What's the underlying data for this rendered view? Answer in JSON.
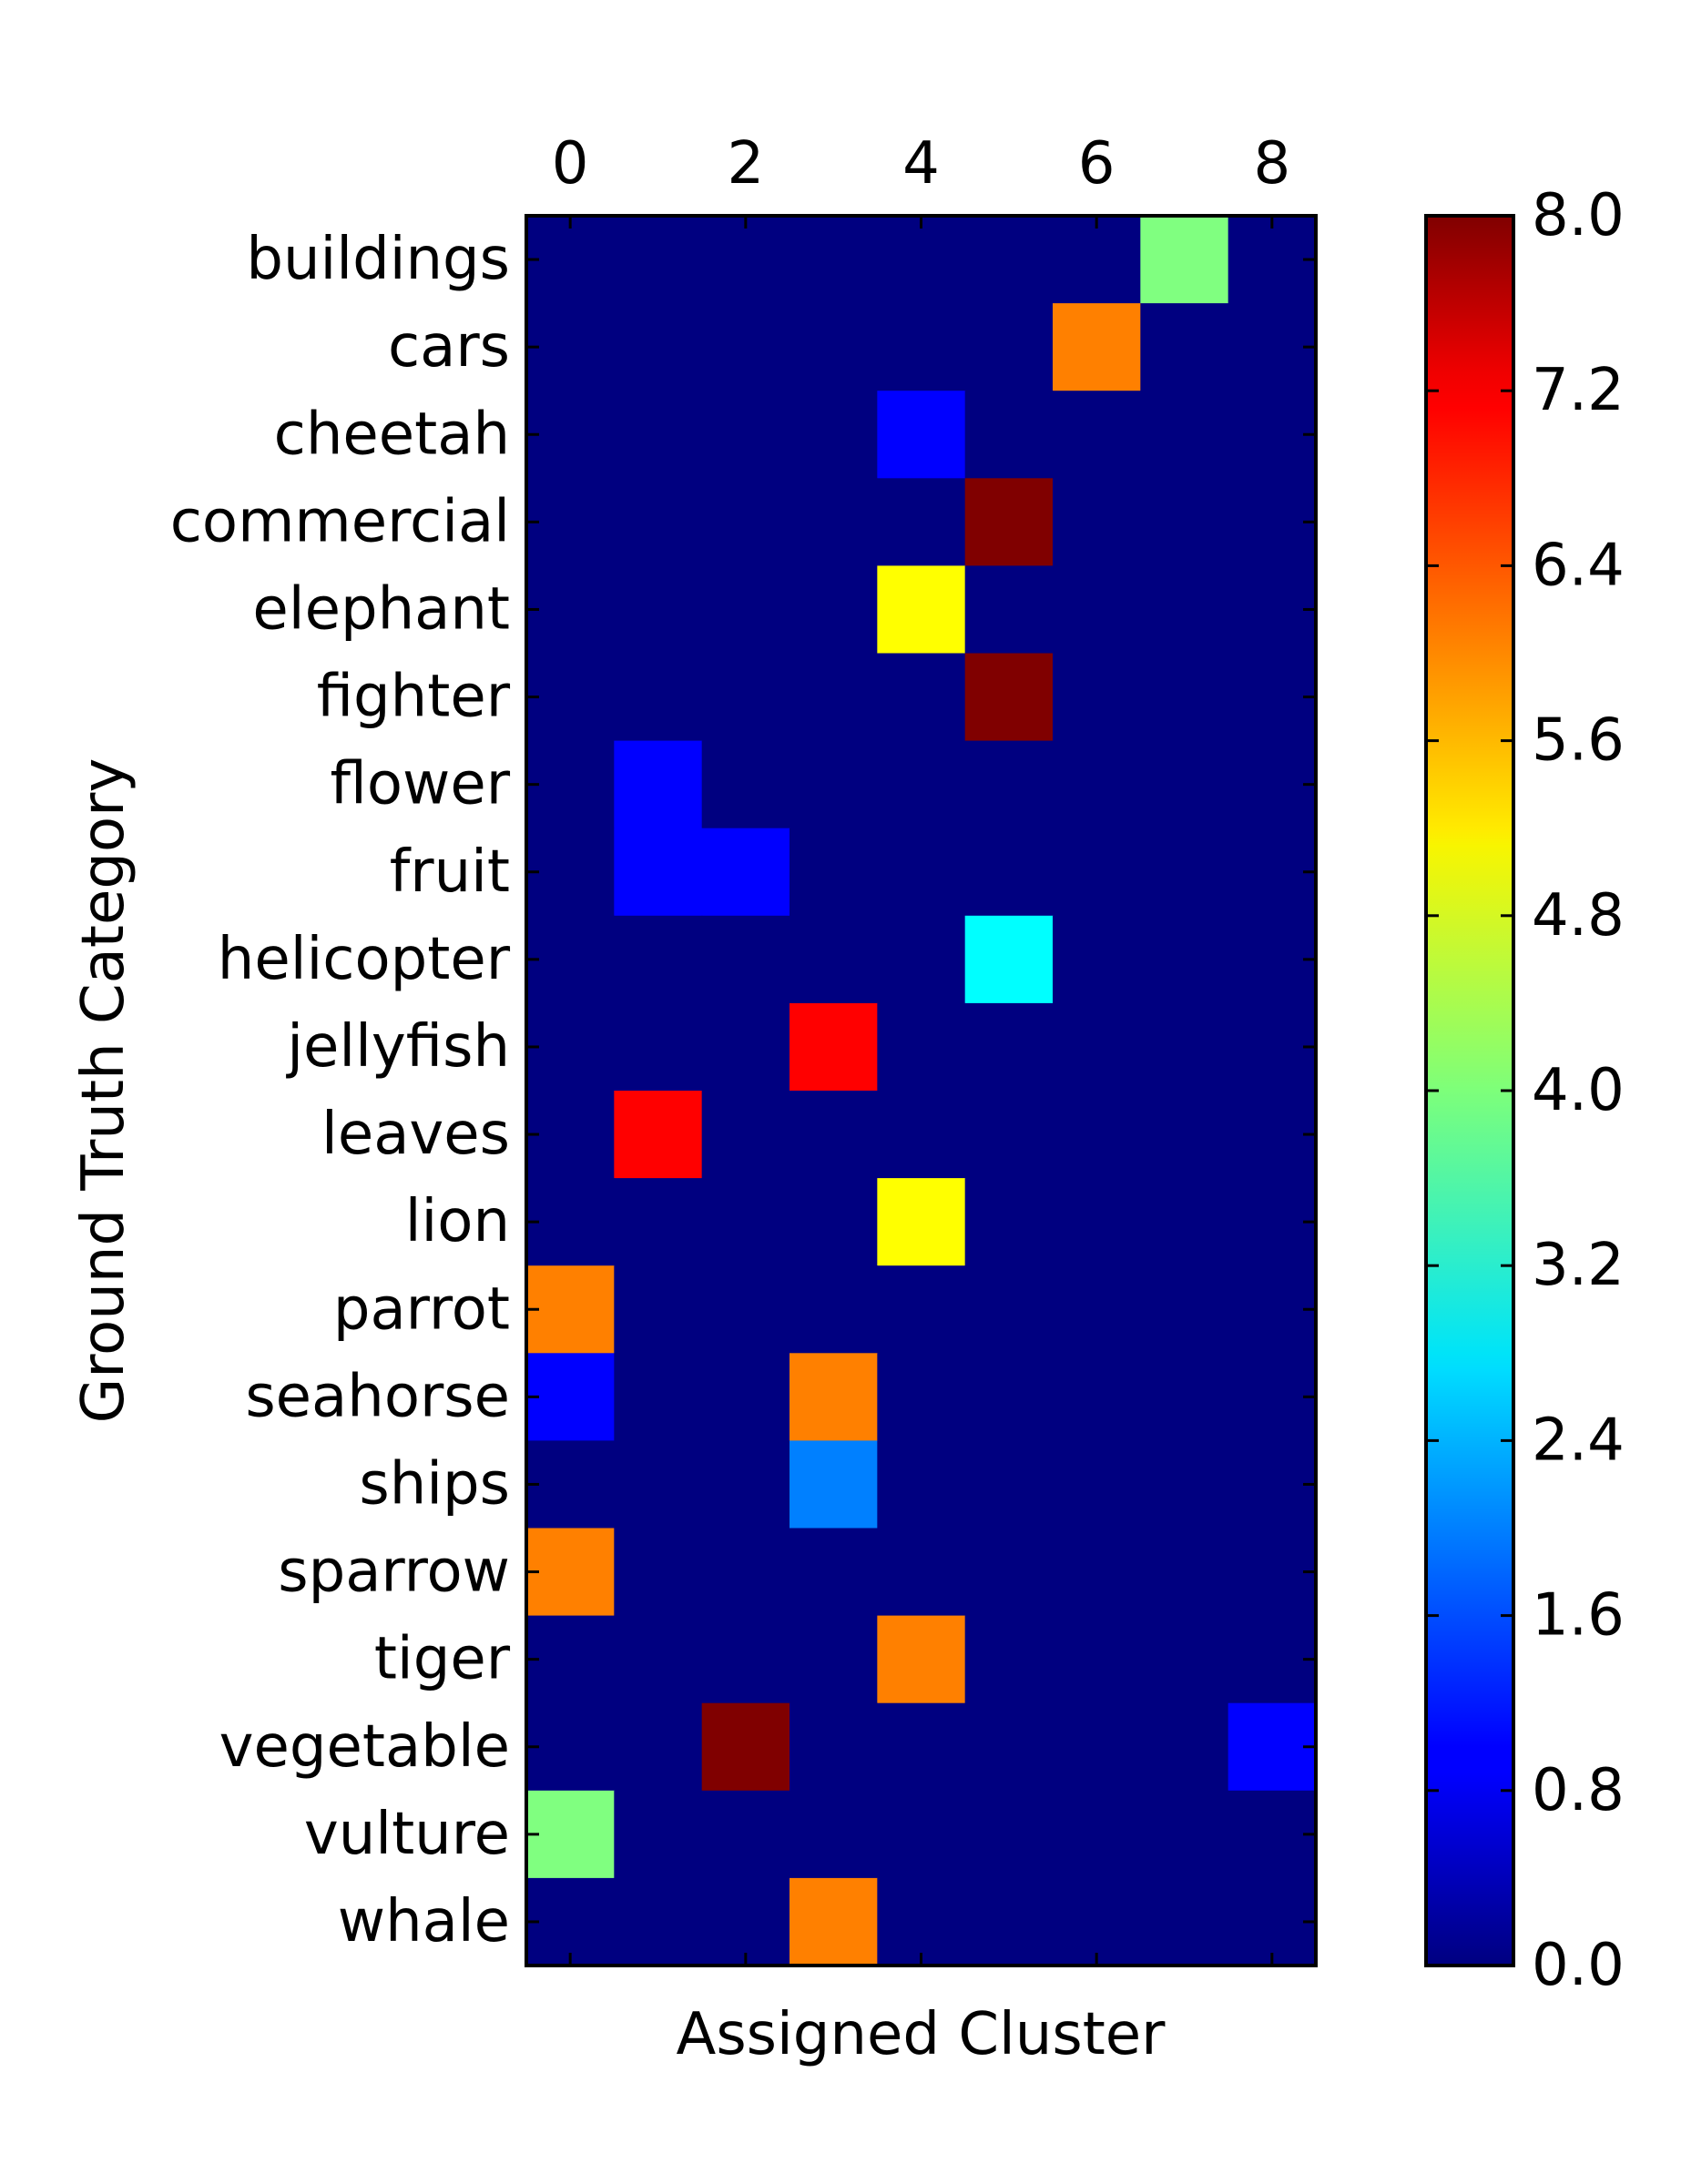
{
  "chart_data": {
    "type": "heatmap",
    "title": "",
    "xlabel": "Assigned Cluster",
    "ylabel": "Ground Truth Category",
    "x_categories": [
      "0",
      "1",
      "2",
      "3",
      "4",
      "5",
      "6",
      "7",
      "8"
    ],
    "x_tick_values": [
      0,
      2,
      4,
      6,
      8
    ],
    "x_tick_labels": [
      "0",
      "2",
      "4",
      "6",
      "8"
    ],
    "y_categories": [
      "buildings",
      "cars",
      "cheetah",
      "commercial",
      "elephant",
      "fighter",
      "flower",
      "fruit",
      "helicopter",
      "jellyfish",
      "leaves",
      "lion",
      "parrot",
      "seahorse",
      "ships",
      "sparrow",
      "tiger",
      "vegetable",
      "vulture",
      "whale"
    ],
    "values": [
      [
        0,
        0,
        0,
        0,
        0,
        0,
        0,
        4,
        0
      ],
      [
        0,
        0,
        0,
        0,
        0,
        0,
        6,
        0,
        0
      ],
      [
        0,
        0,
        0,
        0,
        1,
        0,
        0,
        0,
        0
      ],
      [
        0,
        0,
        0,
        0,
        0,
        8,
        0,
        0,
        0
      ],
      [
        0,
        0,
        0,
        0,
        5,
        0,
        0,
        0,
        0
      ],
      [
        0,
        0,
        0,
        0,
        0,
        8,
        0,
        0,
        0
      ],
      [
        0,
        1,
        0,
        0,
        0,
        0,
        0,
        0,
        0
      ],
      [
        0,
        1,
        1,
        0,
        0,
        0,
        0,
        0,
        0
      ],
      [
        0,
        0,
        0,
        0,
        0,
        3,
        0,
        0,
        0
      ],
      [
        0,
        0,
        0,
        7,
        0,
        0,
        0,
        0,
        0
      ],
      [
        0,
        7,
        0,
        0,
        0,
        0,
        0,
        0,
        0
      ],
      [
        0,
        0,
        0,
        0,
        5,
        0,
        0,
        0,
        0
      ],
      [
        6,
        0,
        0,
        0,
        0,
        0,
        0,
        0,
        0
      ],
      [
        1,
        0,
        0,
        6,
        0,
        0,
        0,
        0,
        0
      ],
      [
        0,
        0,
        0,
        2,
        0,
        0,
        0,
        0,
        0
      ],
      [
        6,
        0,
        0,
        0,
        0,
        0,
        0,
        0,
        0
      ],
      [
        0,
        0,
        0,
        0,
        6,
        0,
        0,
        0,
        0
      ],
      [
        0,
        0,
        8,
        0,
        0,
        0,
        0,
        0,
        1
      ],
      [
        4,
        0,
        0,
        0,
        0,
        0,
        0,
        0,
        0
      ],
      [
        0,
        0,
        0,
        6,
        0,
        0,
        0,
        0,
        0
      ]
    ],
    "colormap": "jet",
    "vmin": 0,
    "vmax": 8,
    "colorbar": {
      "ticks": [
        0.0,
        0.8,
        1.6,
        2.4,
        3.2,
        4.0,
        4.8,
        5.6,
        6.4,
        7.2,
        8.0
      ],
      "tick_labels": [
        "0.0",
        "0.8",
        "1.6",
        "2.4",
        "3.2",
        "4.0",
        "4.8",
        "5.6",
        "6.4",
        "7.2",
        "8.0"
      ]
    }
  }
}
